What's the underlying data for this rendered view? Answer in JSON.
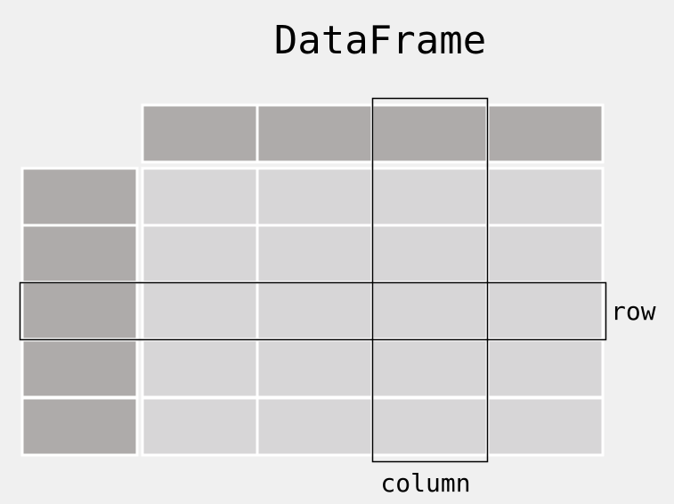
{
  "diagram": {
    "title": "DataFrame",
    "row_label": "row",
    "column_label": "column",
    "colors": {
      "background": "#f0f0f0",
      "header_cell": "#aeabaa",
      "data_cell": "#d7d6d7",
      "cell_border": "#ffffff",
      "highlight_outline": "#000000",
      "text": "#000000"
    },
    "grid": {
      "data_columns": 4,
      "data_rows": 5,
      "has_column_header_row": true,
      "has_index_column": true,
      "highlighted_row": 3,
      "highlighted_column": 3
    }
  }
}
